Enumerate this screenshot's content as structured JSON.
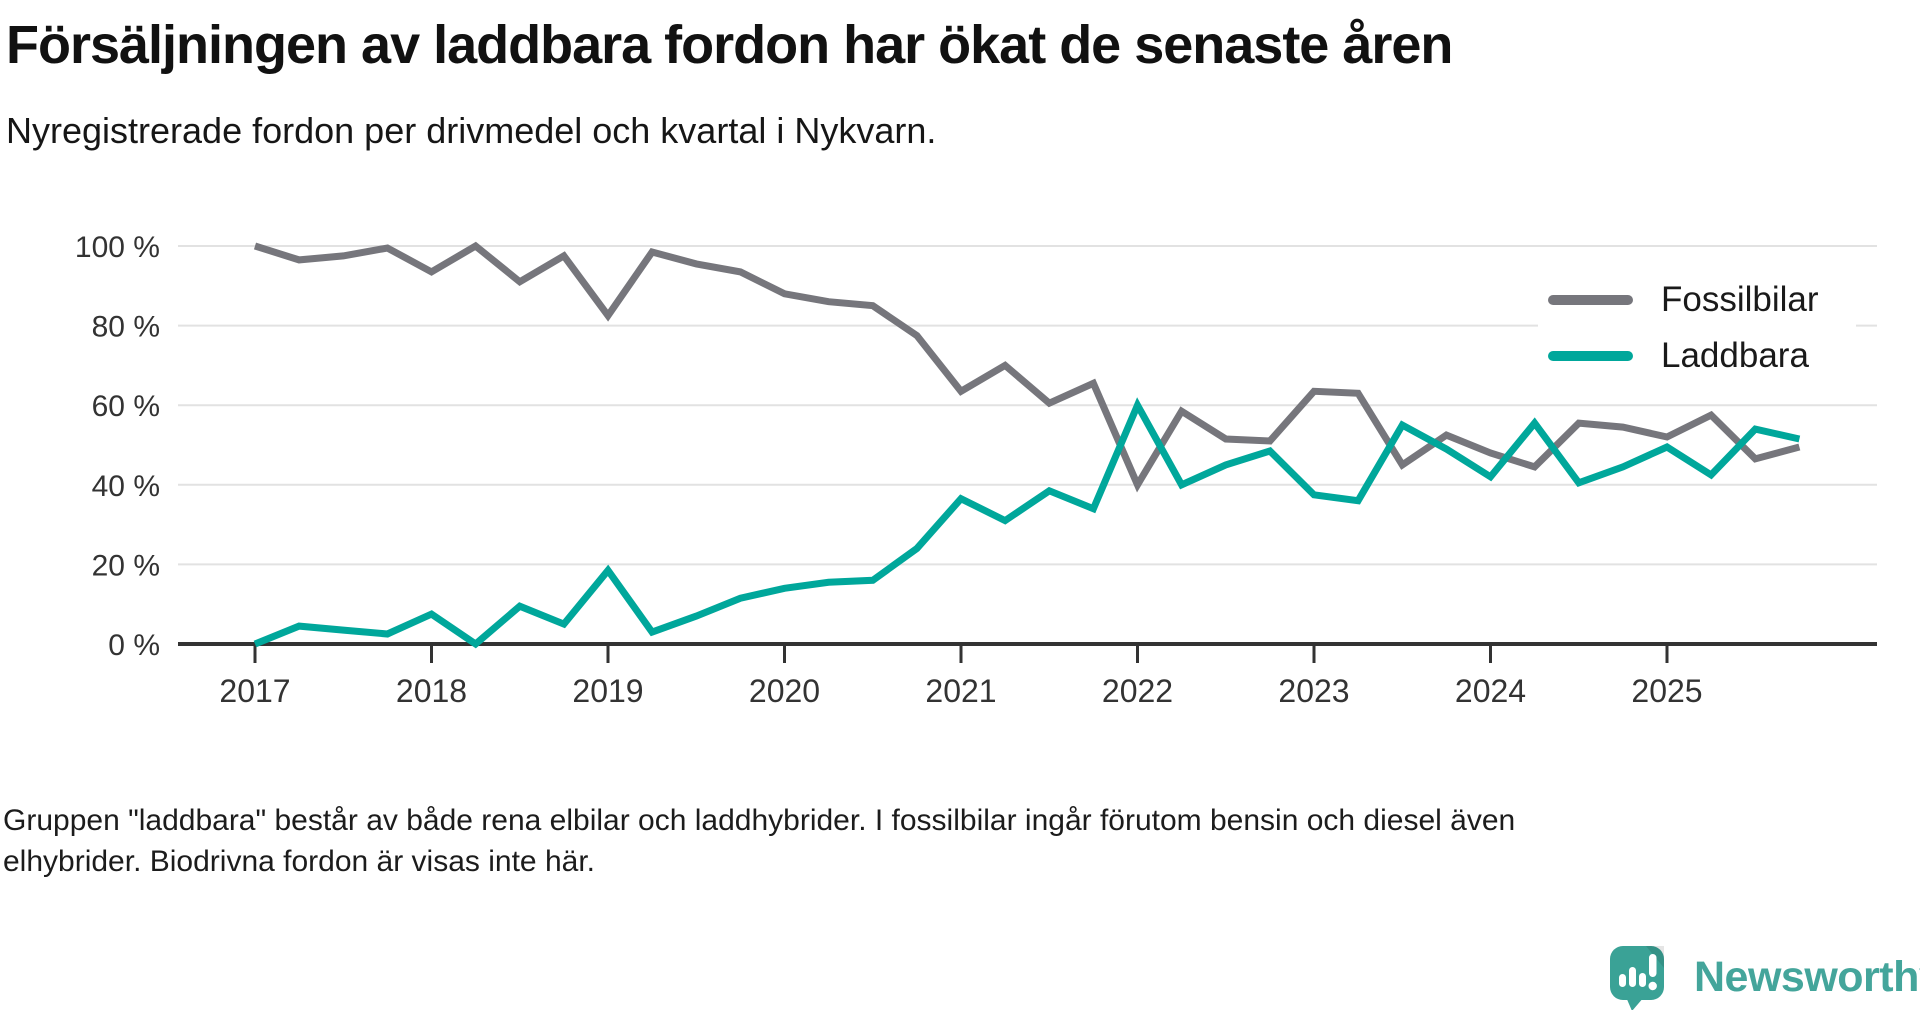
{
  "header": {
    "title": "Försäljningen av laddbara fordon har ökat de senaste åren",
    "subtitle": "Nyregistrerade fordon per drivmedel och kvartal i Nykvarn."
  },
  "legend": {
    "items": [
      {
        "label": "Fossilbilar",
        "color": "#76767c"
      },
      {
        "label": "Laddbara",
        "color": "#00a79b"
      }
    ]
  },
  "footnote": {
    "line1": "Gruppen \"laddbara\" består av både rena elbilar och laddhybrider. I fossilbilar ingår förutom bensin och diesel även",
    "line2": "elhybrider. Biodrivna fordon är visas inte här."
  },
  "branding": {
    "name": "Newsworthy",
    "text_color": "#44a59b",
    "icon_color": "#3aa296",
    "icon": "newsworthy-speech-bubble-chart-icon"
  },
  "chart_data": {
    "type": "line",
    "title": "Försäljningen av laddbara fordon har ökat de senaste åren",
    "subtitle": "Nyregistrerade fordon per drivmedel och kvartal i Nykvarn.",
    "unit": "%",
    "ylim": [
      0,
      100
    ],
    "grid": "horizontal",
    "legend_position": "top-right",
    "y_ticks": [
      0,
      20,
      40,
      60,
      80,
      100
    ],
    "y_tick_labels": [
      "0 %",
      "20 %",
      "40 %",
      "60 %",
      "80 %",
      "100 %"
    ],
    "x_tick_labels": [
      "2017",
      "2018",
      "2019",
      "2020",
      "2021",
      "2022",
      "2023",
      "2024",
      "2025"
    ],
    "x": [
      "2017 Q1",
      "2017 Q2",
      "2017 Q3",
      "2017 Q4",
      "2018 Q1",
      "2018 Q2",
      "2018 Q3",
      "2018 Q4",
      "2019 Q1",
      "2019 Q2",
      "2019 Q3",
      "2019 Q4",
      "2020 Q1",
      "2020 Q2",
      "2020 Q3",
      "2020 Q4",
      "2021 Q1",
      "2021 Q2",
      "2021 Q3",
      "2021 Q4",
      "2022 Q1",
      "2022 Q2",
      "2022 Q3",
      "2022 Q4",
      "2023 Q1",
      "2023 Q2",
      "2023 Q3",
      "2023 Q4",
      "2024 Q1",
      "2024 Q2",
      "2024 Q3",
      "2024 Q4",
      "2025 Q1",
      "2025 Q2",
      "2025 Q3",
      "2025 Q4"
    ],
    "series": [
      {
        "name": "Fossilbilar",
        "color": "#76767c",
        "values": [
          100,
          96.5,
          97.5,
          99.5,
          93.5,
          100,
          91,
          97.5,
          82.5,
          98.5,
          95.5,
          93.5,
          88,
          86,
          85,
          77.5,
          63.5,
          70,
          60.5,
          65.5,
          40,
          58.5,
          51.5,
          51,
          63.5,
          63,
          45,
          52.5,
          48,
          44.5,
          55.5,
          54.5,
          52,
          57.5,
          46.5,
          49.5
        ]
      },
      {
        "name": "Laddbara",
        "color": "#00a79b",
        "values": [
          0,
          4.5,
          3.5,
          2.5,
          7.5,
          0,
          9.5,
          5,
          18.5,
          3,
          7,
          11.5,
          14,
          15.5,
          16,
          24,
          36.5,
          31,
          38.5,
          34,
          60,
          40,
          45,
          48.5,
          37.5,
          36,
          55,
          49,
          42,
          55.5,
          40.5,
          44.5,
          49.5,
          42.5,
          54,
          51.5
        ]
      }
    ]
  }
}
